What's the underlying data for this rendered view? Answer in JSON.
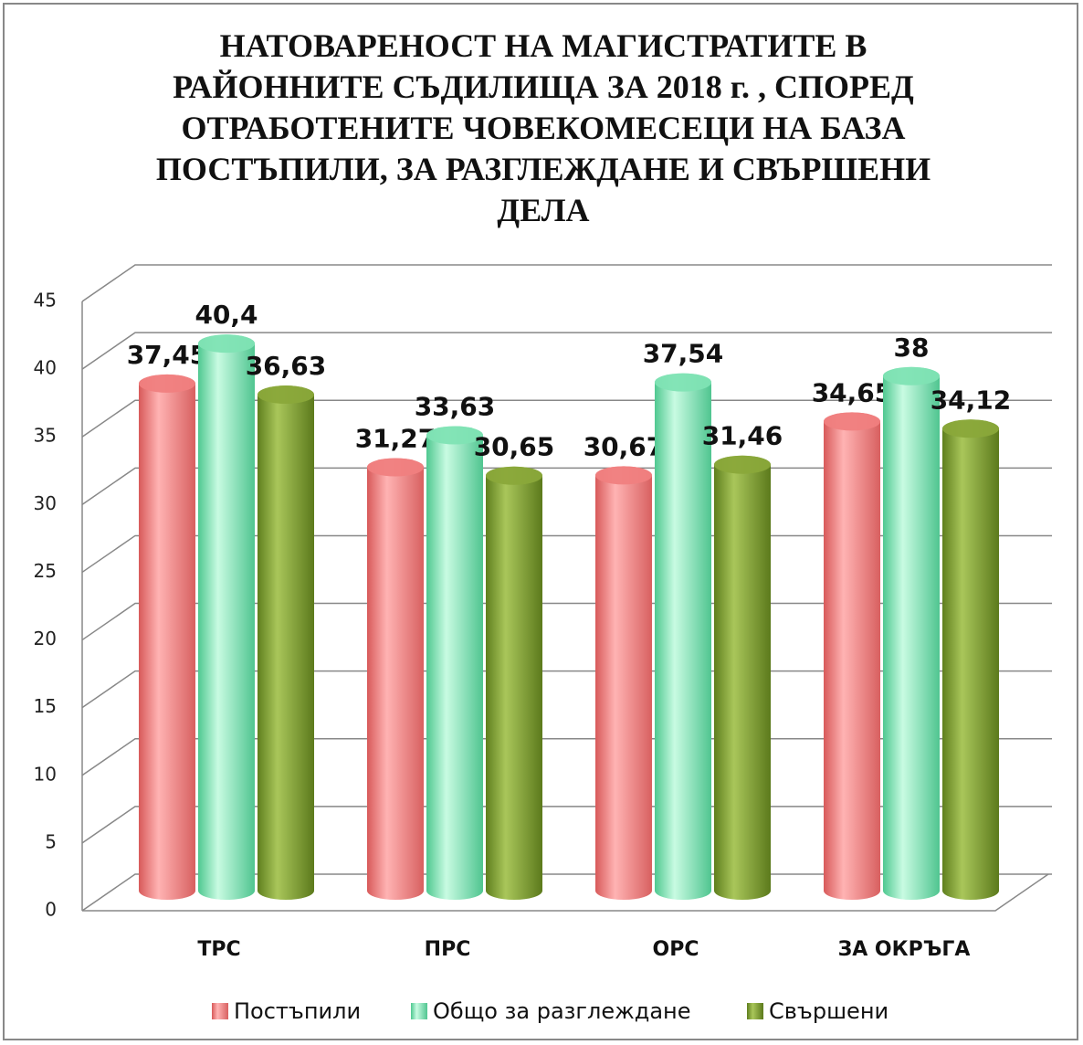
{
  "chart_data": {
    "type": "bar3d",
    "title": "НАТОВАРЕНОСТ НА МАГИСТРАТИТЕ В РАЙОННИТЕ СЪДИЛИЩА ЗА 2018 г. , СПОРЕД ОТРАБОТЕНИТЕ ЧОВЕКОМЕСЕЦИ НА БАЗА ПОСТЪПИЛИ, ЗА РАЗГЛЕЖДАНЕ  И СВЪРШЕНИ ДЕЛА",
    "categories": [
      "ТРС",
      "ПРС",
      "ОРС",
      "ЗА ОКРЪГА"
    ],
    "series": [
      {
        "name": "Постъпили",
        "color": "#f08080",
        "values": [
          37.45,
          31.27,
          30.67,
          34.65
        ],
        "value_labels": [
          "37,45",
          "31,27",
          "30,67",
          "34,65"
        ]
      },
      {
        "name": "Общо за разглеждане",
        "color": "#7fe3b4",
        "values": [
          40.4,
          33.63,
          37.54,
          38
        ],
        "value_labels": [
          "40,4",
          "33,63",
          "37,54",
          "38"
        ]
      },
      {
        "name": "Свършени",
        "color": "#8aa83a",
        "values": [
          36.63,
          30.65,
          31.46,
          34.12
        ],
        "value_labels": [
          "36,63",
          "30,65",
          "31,46",
          "34,12"
        ]
      }
    ],
    "ylim": [
      0,
      45
    ],
    "yticks": [
      0,
      5,
      10,
      15,
      20,
      25,
      30,
      35,
      40,
      45
    ],
    "grid": true,
    "legend": "bottom"
  }
}
